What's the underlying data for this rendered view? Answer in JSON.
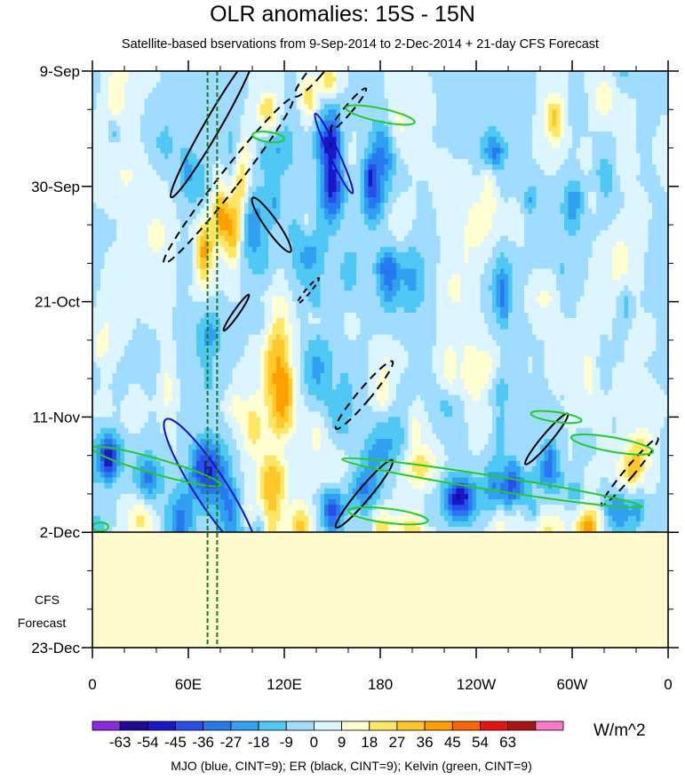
{
  "title": "OLR anomalies: 15S - 15N",
  "subtitle": "Satellite-based bservations from 9-Sep-2014 to 2-Dec-2014 + 21-day CFS Forecast",
  "footer": "MJO (blue, CINT=9); ER (black, CINT=9); Kelvin (green, CINT=9)",
  "forecast_label_1": "CFS",
  "forecast_label_2": "Forecast",
  "units": "W/m^2",
  "colors": {
    "forecast_fill": "#fffacd",
    "mjo": "#1010d0",
    "er": "#000000",
    "kelvin": "#22cc22",
    "index_line": "#1a7a1a"
  },
  "chart_data": {
    "type": "heatmap",
    "title": "OLR anomalies: 15S - 15N",
    "subtitle": "Satellite-based bservations from 9-Sep-2014 to 2-Dec-2014 + 21-day CFS Forecast",
    "x_ticks": [
      "0",
      "60E",
      "120E",
      "180",
      "120W",
      "60W",
      "0"
    ],
    "x_range_deg": [
      0,
      360
    ],
    "y_ticks": [
      "9-Sep",
      "30-Sep",
      "21-Oct",
      "11-Nov",
      "2-Dec",
      "23-Dec"
    ],
    "y_range_days": [
      0,
      105
    ],
    "observation_end": "2-Dec",
    "forecast_period": "2-Dec to 23-Dec",
    "colorbar": {
      "levels": [
        -63,
        -54,
        -45,
        -36,
        -27,
        -18,
        -9,
        0,
        9,
        18,
        27,
        36,
        45,
        54,
        63
      ],
      "labels": [
        "-63",
        "-54",
        "-45",
        "-36",
        "-27",
        "-18",
        "-9",
        "0",
        "9",
        "18",
        "27",
        "36",
        "45",
        "54",
        "63"
      ],
      "colors": [
        "#8c28e0",
        "#1e0a96",
        "#1818c8",
        "#2850e6",
        "#2878f0",
        "#32a0f0",
        "#50c8f5",
        "#a0dcff",
        "#dcf5ff",
        "#ffffd2",
        "#ffe664",
        "#ffc828",
        "#ffa000",
        "#ff6400",
        "#e61414",
        "#aa1414",
        "#ff78c8"
      ],
      "units": "W/m^2"
    },
    "overlays": [
      {
        "name": "MJO",
        "color": "blue",
        "cint": 9
      },
      {
        "name": "ER",
        "color": "black",
        "cint": 9
      },
      {
        "name": "Kelvin",
        "color": "green",
        "cint": 9
      }
    ],
    "vertical_lines_lon": [
      72,
      78
    ]
  }
}
